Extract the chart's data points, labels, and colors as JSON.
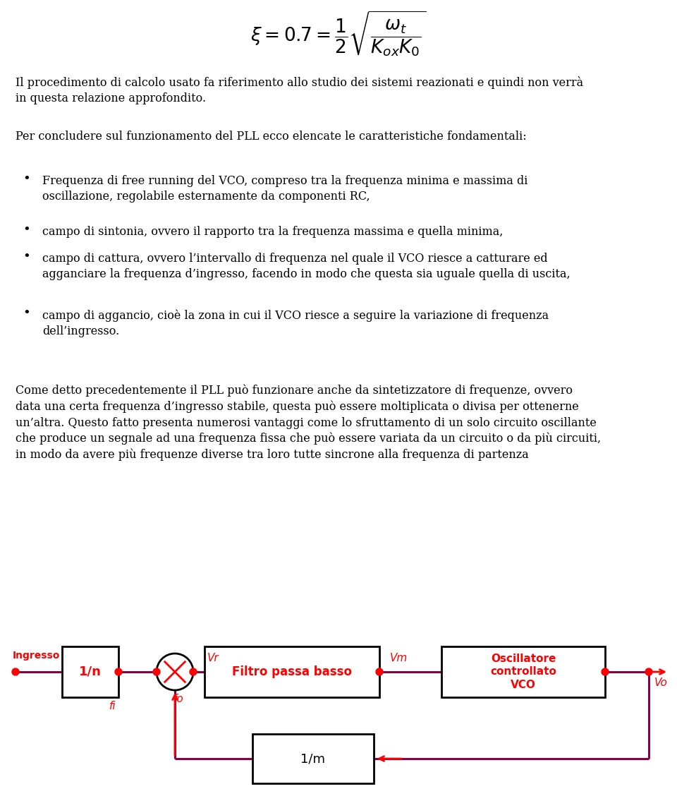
{
  "bg_color": "#ffffff",
  "para1": "Il procedimento di calcolo usato fa riferimento allo studio dei sistemi reazionati e quindi non verrà\nin questa relazione approfondito.",
  "para2": "Per concludere sul funzionamento del PLL ecco elencate le caratteristiche fondamentali:",
  "bullets": [
    "Frequenza di free running del VCO, compreso tra la frequenza minima e massima di\noscillazione, regolabile esternamente da componenti RC,",
    "campo di sintonia, ovvero il rapporto tra la frequenza massima e quella minima,",
    "campo di cattura, ovvero l’intervallo di frequenza nel quale il VCO riesce a catturare ed\nagganciare la frequenza d’ingresso, facendo in modo che questa sia uguale quella di uscita,",
    "campo di aggancio, cioè la zona in cui il VCO riesce a seguire la variazione di frequenza\ndell’ingresso."
  ],
  "para3": "Come detto precedentemente il PLL può funzionare anche da sintetizzatore di frequenze, ovvero\ndata una certa frequenza d’ingresso stabile, questa può essere moltiplicata o divisa per ottenerne\nun’altra. Questo fatto presenta numerosi vantaggi come lo sfruttamento di un solo circuito oscillante\nche produce un segnale ad una frequenza fissa che può essere variata da un circuito o da più circuiti,\nin modo da avere più frequenze diverse tra loro tutte sincrone alla frequenza di partenza",
  "line_color": "#880044",
  "arrow_color": "#ff0000",
  "node_color": "#ff0000"
}
